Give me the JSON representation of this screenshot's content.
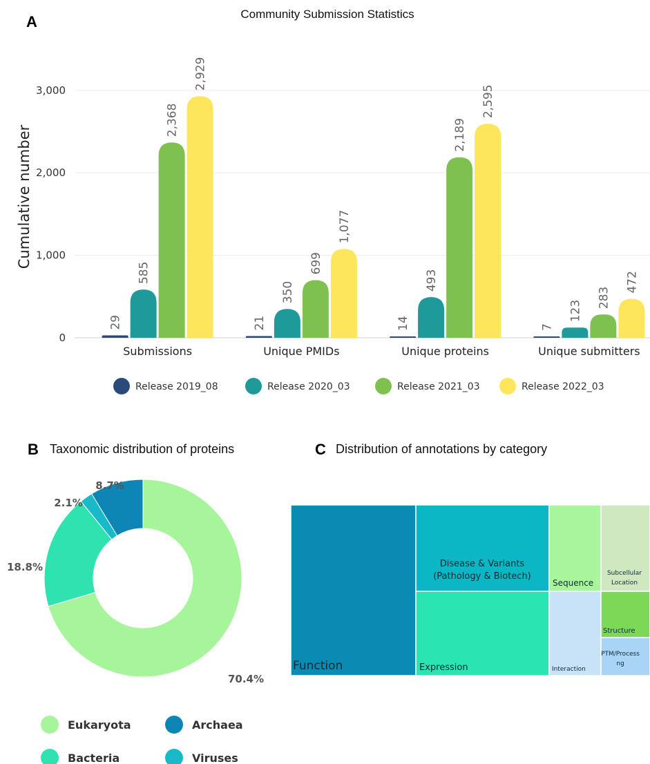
{
  "chart_data": [
    {
      "panel": "A",
      "type": "bar",
      "title": "Community Submission Statistics",
      "ylabel": "Cumulative number",
      "xlabel": "",
      "ylim": [
        0,
        3400
      ],
      "yticks": [
        0,
        1000,
        2000,
        3000
      ],
      "ytick_labels": [
        "0",
        "1,000",
        "2,000",
        "3,000"
      ],
      "grid": true,
      "legend_position": "bottom",
      "categories": [
        "Submissions",
        "Unique PMIDs",
        "Unique proteins",
        "Unique submitters"
      ],
      "series": [
        {
          "name": "Release 2019_08",
          "color": "#2b4a7a",
          "values": [
            29,
            21,
            14,
            7
          ],
          "labels": [
            "29",
            "21",
            "14",
            "7"
          ]
        },
        {
          "name": "Release 2020_03",
          "color": "#1e9a9a",
          "values": [
            585,
            350,
            493,
            123
          ],
          "labels": [
            "585",
            "350",
            "493",
            "123"
          ]
        },
        {
          "name": "Release 2021_03",
          "color": "#7fc151",
          "values": [
            2368,
            699,
            2189,
            283
          ],
          "labels": [
            "2,368",
            "699",
            "2,189",
            "283"
          ]
        },
        {
          "name": "Release 2022_03",
          "color": "#fde55c",
          "values": [
            2929,
            1077,
            2595,
            472
          ],
          "labels": [
            "2,929",
            "1,077",
            "2,595",
            "472"
          ]
        }
      ]
    },
    {
      "panel": "B",
      "type": "pie",
      "donut": true,
      "title": "Taxonomic distribution of proteins",
      "legend_position": "bottom",
      "slices": [
        {
          "name": "Eukaryota",
          "value": 70.4,
          "label": "70.4%",
          "color": "#a6f59a"
        },
        {
          "name": "Bacteria",
          "value": 18.8,
          "label": "18.8%",
          "color": "#2ee3b0"
        },
        {
          "name": "Viruses",
          "value": 2.1,
          "label": "2.1%",
          "color": "#1ab9c9"
        },
        {
          "name": "Archaea",
          "value": 8.7,
          "label": "8.7%",
          "color": "#0d86b5"
        }
      ]
    },
    {
      "panel": "C",
      "type": "treemap",
      "title": "Distribution of annotations by category",
      "cells": [
        {
          "name": "Function",
          "color": "#0a8bb4"
        },
        {
          "name": "Disease & Variants (Pathology & Biotech)",
          "lines": [
            "Disease & Variants",
            "(Pathology & Biotech)"
          ],
          "color": "#0bb7c4"
        },
        {
          "name": "Expression",
          "color": "#2ae4b2"
        },
        {
          "name": "Sequence",
          "color": "#a8f59b"
        },
        {
          "name": "Subcellular Location",
          "lines": [
            "Subcellular",
            "Location"
          ],
          "color": "#cfe8c0"
        },
        {
          "name": "Interaction",
          "color": "#c8e2f7"
        },
        {
          "name": "Structure",
          "color": "#7ed857"
        },
        {
          "name": "PTM/Processing",
          "lines": [
            "PTM/Process",
            "ng"
          ],
          "color": "#a9d4f5"
        }
      ]
    }
  ],
  "panel_letters": {
    "a": "A",
    "b": "B",
    "c": "C"
  }
}
